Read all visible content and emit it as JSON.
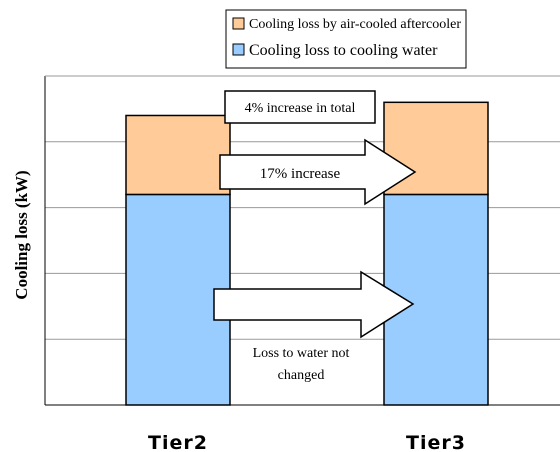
{
  "chart_data": {
    "type": "bar",
    "stacked": true,
    "categories": [
      "Tier2",
      "Tier3"
    ],
    "series": [
      {
        "name": "Cooling loss to cooling water",
        "values": [
          3.2,
          3.2
        ],
        "color": "#99CCFF"
      },
      {
        "name": "Cooling loss by air-cooled aftercooler",
        "values": [
          1.2,
          1.4
        ],
        "color": "#FFCC99"
      }
    ],
    "ylabel": "Cooling loss (kW)",
    "ylim": [
      0,
      5
    ],
    "y_ticks_labeled": false,
    "grid": true,
    "legend_position": "top",
    "annotations": {
      "total": "4% increase in total",
      "aftercooler": "17%  increase",
      "water_line1": "Loss to water not",
      "water_line2": "changed"
    }
  }
}
